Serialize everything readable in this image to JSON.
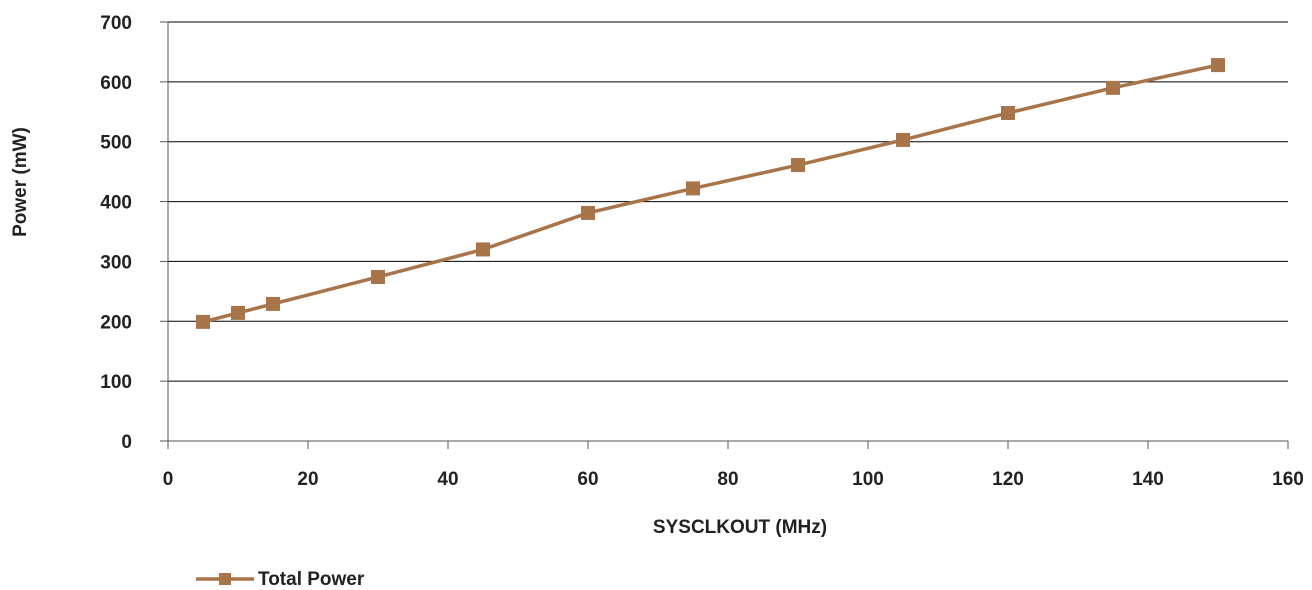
{
  "chart_data": {
    "type": "line",
    "title": "",
    "xlabel": "SYSCLKOUT (MHz)",
    "ylabel": "Power (mW)",
    "xlim": [
      0,
      160
    ],
    "ylim": [
      0,
      700
    ],
    "x_ticks": [
      0,
      20,
      40,
      60,
      80,
      100,
      120,
      140,
      160
    ],
    "y_ticks": [
      0,
      100,
      200,
      300,
      400,
      500,
      600,
      700
    ],
    "grid": "horizontal",
    "legend_position": "bottom-left",
    "series": [
      {
        "name": "Total Power",
        "color": "#a8744a",
        "marker": "square",
        "x": [
          5,
          10,
          15,
          30,
          45,
          60,
          75,
          90,
          105,
          120,
          135,
          150
        ],
        "y": [
          199,
          214,
          229,
          274,
          320,
          381,
          422,
          461,
          503,
          548,
          590,
          628
        ]
      }
    ]
  }
}
